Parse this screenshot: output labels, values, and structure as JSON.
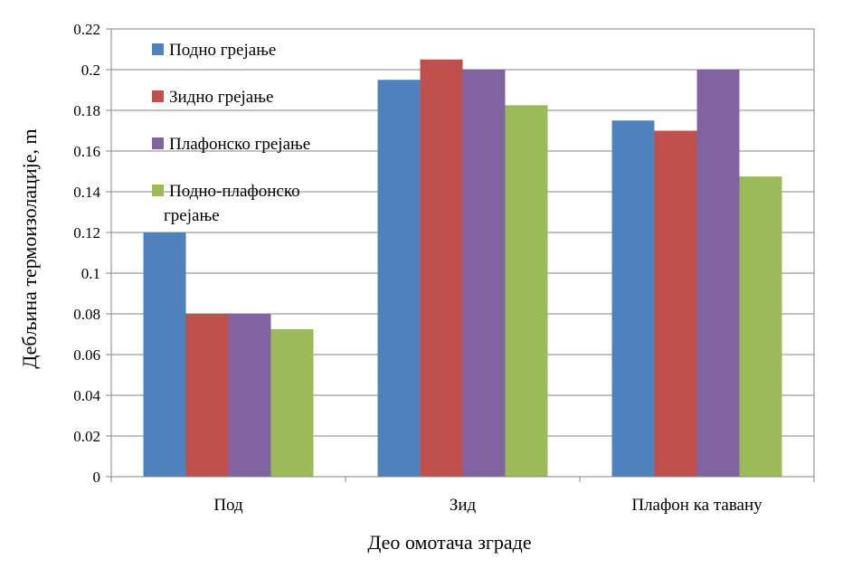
{
  "chart_data": {
    "type": "bar",
    "title": "",
    "xlabel": "Део омотача зграде",
    "ylabel": "Дебљина термоизолације, m",
    "categories": [
      "Под",
      "Зид",
      "Плафон ка тавану"
    ],
    "ylim": [
      0,
      0.22
    ],
    "yticks": [
      "0",
      "0.02",
      "0.04",
      "0.06",
      "0.08",
      "0.1",
      "0.12",
      "0.14",
      "0.16",
      "0.18",
      "0.2",
      "0.22"
    ],
    "grid": true,
    "legend_position": "top-left",
    "series": [
      {
        "name": "Подно грејање",
        "values": [
          0.12,
          0.195,
          0.175
        ],
        "color": "#4F81BD"
      },
      {
        "name": "Зидно грејање",
        "values": [
          0.08,
          0.205,
          0.17
        ],
        "color": "#C0504D"
      },
      {
        "name": "Плафонско грејање",
        "values": [
          0.08,
          0.2,
          0.2
        ],
        "color": "#8064A2"
      },
      {
        "name": "Подно-плафонско грејање",
        "values": [
          0.0725,
          0.1825,
          0.1475
        ],
        "color": "#9BBB59"
      }
    ]
  }
}
